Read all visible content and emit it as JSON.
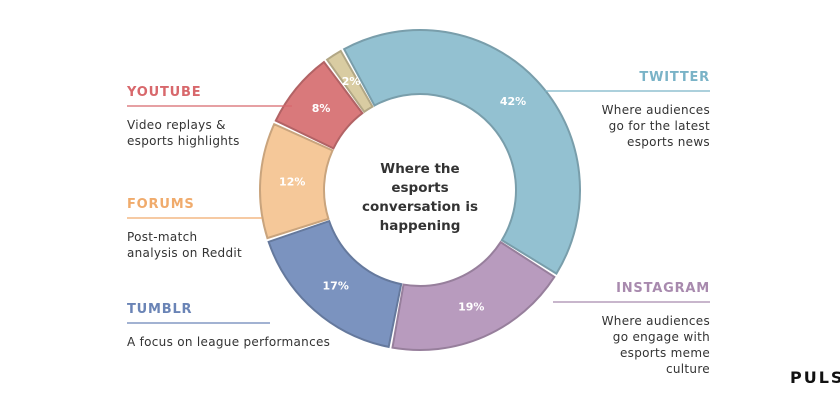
{
  "chart_data": {
    "type": "donut",
    "title": "Where the esports conversation is happening",
    "categories": [
      "TWITTER",
      "INSTAGRAM",
      "TUMBLR",
      "FORUMS",
      "YOUTUBE",
      null
    ],
    "values": [
      42,
      19,
      17,
      12,
      8,
      2
    ],
    "value_labels": [
      "42%",
      "19%",
      "17%",
      "12%",
      "8%",
      "2%"
    ],
    "colors": [
      "#93c1d1",
      "#b89bbe",
      "#7b93bf",
      "#f5c899",
      "#d9797b",
      "#d9cca2"
    ],
    "label_colors": [
      "#7ab3c7",
      "#a88aae",
      "#6a84b6",
      "#f0ab6c",
      "#d8686c",
      "#c9b98a"
    ],
    "descriptions": [
      [
        "Where audiences",
        "go for the latest",
        "esports news"
      ],
      [
        "Where audiences",
        "go engage with",
        "esports meme",
        "culture"
      ],
      [
        "A focus on league performances"
      ],
      [
        "Post-match",
        "analysis on Reddit"
      ],
      [
        "Video replays &",
        "esports highlights"
      ],
      []
    ],
    "brand": "PULS"
  }
}
